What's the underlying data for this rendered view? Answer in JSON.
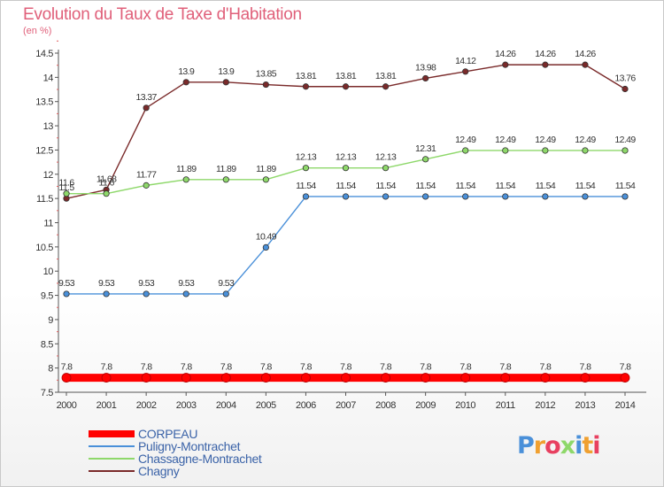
{
  "title": "Evolution du Taux de Taxe d'Habitation",
  "unit_label": "(en %)",
  "brand": "Proxiti",
  "chart_data": {
    "type": "line",
    "title": "Evolution du Taux de Taxe d'Habitation",
    "ylabel": "(en %)",
    "xlabel": "",
    "x": [
      "2000",
      "2001",
      "2002",
      "2003",
      "2004",
      "2005",
      "2006",
      "2007",
      "2008",
      "2009",
      "2010",
      "2011",
      "2012",
      "2013",
      "2014"
    ],
    "ylim": [
      7.5,
      14.5
    ],
    "yticks": [
      "7.5",
      "8",
      "8.5",
      "9",
      "9.5",
      "10",
      "10.5",
      "11",
      "11.5",
      "12",
      "12.5",
      "13",
      "13.5",
      "14",
      "14.5"
    ],
    "grid": false,
    "legend_position": "bottom-left",
    "series": [
      {
        "name": "CORPEAU",
        "color": "#ff0000",
        "values": [
          7.8,
          7.8,
          7.8,
          7.8,
          7.8,
          7.8,
          7.8,
          7.8,
          7.8,
          7.8,
          7.8,
          7.8,
          7.8,
          7.8,
          7.8
        ],
        "labels": [
          "7.8",
          "7.8",
          "7.8",
          "7.8",
          "7.8",
          "7.8",
          "7.8",
          "7.8",
          "7.8",
          "7.8",
          "7.8",
          "7.8",
          "7.8",
          "7.8",
          "7.8"
        ]
      },
      {
        "name": "Puligny-Montrachet",
        "color": "#4a90d9",
        "values": [
          9.53,
          9.53,
          9.53,
          9.53,
          9.53,
          10.49,
          11.54,
          11.54,
          11.54,
          11.54,
          11.54,
          11.54,
          11.54,
          11.54,
          11.54
        ],
        "labels": [
          "9.53",
          "9.53",
          "9.53",
          "9.53",
          "9.53",
          "10.49",
          "11.54",
          "11.54",
          "11.54",
          "11.54",
          "11.54",
          "11.54",
          "11.54",
          "11.54",
          "11.54"
        ]
      },
      {
        "name": "Chassagne-Montrachet",
        "color": "#8ed86a",
        "values": [
          11.6,
          11.6,
          11.77,
          11.89,
          11.89,
          11.89,
          12.13,
          12.13,
          12.13,
          12.31,
          12.49,
          12.49,
          12.49,
          12.49,
          12.49
        ],
        "labels": [
          "11.6",
          "11.6",
          "11.77",
          "11.89",
          "11.89",
          "11.89",
          "12.13",
          "12.13",
          "12.13",
          "12.31",
          "12.49",
          "12.49",
          "12.49",
          "12.49",
          "12.49"
        ]
      },
      {
        "name": "Chagny",
        "color": "#7a2a2a",
        "values": [
          11.5,
          11.68,
          13.37,
          13.9,
          13.9,
          13.85,
          13.81,
          13.81,
          13.81,
          13.98,
          14.12,
          14.26,
          14.26,
          14.26,
          13.76
        ],
        "labels": [
          "11.5",
          "11.68",
          "13.37",
          "13.9",
          "13.9",
          "13.85",
          "13.81",
          "13.81",
          "13.81",
          "13.98",
          "14.12",
          "14.26",
          "14.26",
          "14.26",
          "13.76"
        ]
      }
    ]
  }
}
